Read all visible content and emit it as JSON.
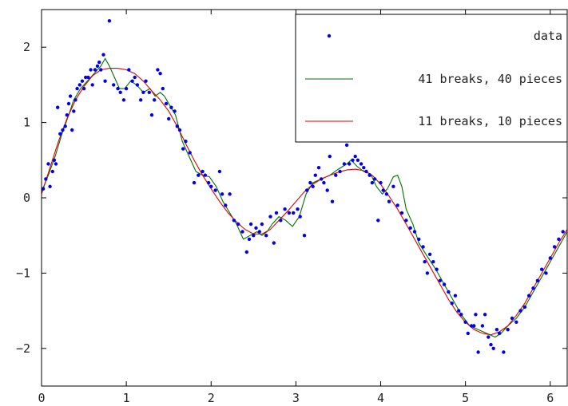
{
  "chart_data": {
    "type": "scatter",
    "title": "",
    "xlabel": "",
    "ylabel": "",
    "xlim": [
      0,
      6.2
    ],
    "ylim": [
      -2.5,
      2.5
    ],
    "xticks": [
      0,
      1,
      2,
      3,
      4,
      5,
      6
    ],
    "xtick_labels": [
      "0",
      "1",
      "2",
      "3",
      "4",
      "5",
      "6"
    ],
    "yticks": [
      2,
      1,
      0,
      -1,
      -2
    ],
    "ytick_labels": [
      "2",
      "1",
      "0",
      "−1",
      "−2"
    ],
    "grid": false,
    "legend_position": "top-right",
    "colors": {
      "data": "#0000ee",
      "fit41": "#007000",
      "fit11": "#e00000"
    },
    "series": [
      {
        "name": "data",
        "kind": "points",
        "points": [
          [
            0.02,
            0.12
          ],
          [
            0.05,
            0.25
          ],
          [
            0.08,
            0.45
          ],
          [
            0.1,
            0.15
          ],
          [
            0.13,
            0.35
          ],
          [
            0.15,
            0.5
          ],
          [
            0.17,
            0.45
          ],
          [
            0.19,
            1.2
          ],
          [
            0.22,
            0.85
          ],
          [
            0.25,
            0.9
          ],
          [
            0.28,
            0.95
          ],
          [
            0.3,
            1.1
          ],
          [
            0.32,
            1.25
          ],
          [
            0.34,
            1.35
          ],
          [
            0.36,
            0.9
          ],
          [
            0.38,
            1.15
          ],
          [
            0.4,
            1.3
          ],
          [
            0.42,
            1.45
          ],
          [
            0.45,
            1.5
          ],
          [
            0.48,
            1.55
          ],
          [
            0.5,
            1.45
          ],
          [
            0.52,
            1.6
          ],
          [
            0.55,
            1.6
          ],
          [
            0.58,
            1.7
          ],
          [
            0.6,
            1.5
          ],
          [
            0.63,
            1.7
          ],
          [
            0.66,
            1.75
          ],
          [
            0.68,
            1.8
          ],
          [
            0.7,
            1.7
          ],
          [
            0.73,
            1.9
          ],
          [
            0.75,
            1.55
          ],
          [
            0.8,
            2.35
          ],
          [
            0.85,
            1.5
          ],
          [
            0.9,
            1.45
          ],
          [
            0.93,
            1.4
          ],
          [
            0.97,
            1.3
          ],
          [
            1.0,
            1.45
          ],
          [
            1.03,
            1.7
          ],
          [
            1.07,
            1.55
          ],
          [
            1.1,
            1.6
          ],
          [
            1.13,
            1.5
          ],
          [
            1.17,
            1.3
          ],
          [
            1.2,
            1.4
          ],
          [
            1.23,
            1.55
          ],
          [
            1.27,
            1.4
          ],
          [
            1.3,
            1.1
          ],
          [
            1.33,
            1.3
          ],
          [
            1.37,
            1.7
          ],
          [
            1.4,
            1.65
          ],
          [
            1.43,
            1.45
          ],
          [
            1.47,
            1.25
          ],
          [
            1.5,
            1.05
          ],
          [
            1.53,
            1.2
          ],
          [
            1.57,
            1.15
          ],
          [
            1.6,
            0.95
          ],
          [
            1.63,
            0.9
          ],
          [
            1.67,
            0.65
          ],
          [
            1.7,
            0.75
          ],
          [
            1.75,
            0.6
          ],
          [
            1.8,
            0.2
          ],
          [
            1.85,
            0.3
          ],
          [
            1.9,
            0.35
          ],
          [
            1.93,
            0.3
          ],
          [
            1.97,
            0.2
          ],
          [
            2.0,
            0.15
          ],
          [
            2.05,
            0.1
          ],
          [
            2.1,
            0.35
          ],
          [
            2.13,
            0.05
          ],
          [
            2.17,
            -0.1
          ],
          [
            2.22,
            0.05
          ],
          [
            2.27,
            -0.3
          ],
          [
            2.32,
            -0.35
          ],
          [
            2.37,
            -0.45
          ],
          [
            2.42,
            -0.72
          ],
          [
            2.45,
            -0.55
          ],
          [
            2.47,
            -0.35
          ],
          [
            2.5,
            -0.5
          ],
          [
            2.53,
            -0.4
          ],
          [
            2.57,
            -0.45
          ],
          [
            2.6,
            -0.35
          ],
          [
            2.65,
            -0.5
          ],
          [
            2.7,
            -0.25
          ],
          [
            2.74,
            -0.6
          ],
          [
            2.77,
            -0.2
          ],
          [
            2.82,
            -0.3
          ],
          [
            2.87,
            -0.15
          ],
          [
            2.92,
            -0.2
          ],
          [
            2.97,
            -0.2
          ],
          [
            3.02,
            -0.15
          ],
          [
            3.05,
            -0.25
          ],
          [
            3.1,
            -0.5
          ],
          [
            3.13,
            0.1
          ],
          [
            3.17,
            0.2
          ],
          [
            3.2,
            0.15
          ],
          [
            3.23,
            0.3
          ],
          [
            3.27,
            0.4
          ],
          [
            3.3,
            0.25
          ],
          [
            3.33,
            0.2
          ],
          [
            3.37,
            0.1
          ],
          [
            3.4,
            0.55
          ],
          [
            3.43,
            -0.05
          ],
          [
            3.47,
            0.3
          ],
          [
            3.52,
            0.35
          ],
          [
            3.57,
            0.45
          ],
          [
            3.6,
            0.7
          ],
          [
            3.63,
            0.45
          ],
          [
            3.67,
            0.5
          ],
          [
            3.7,
            0.55
          ],
          [
            3.73,
            0.5
          ],
          [
            3.77,
            0.45
          ],
          [
            3.8,
            0.4
          ],
          [
            3.83,
            0.35
          ],
          [
            3.87,
            0.3
          ],
          [
            3.9,
            0.2
          ],
          [
            3.93,
            0.25
          ],
          [
            3.97,
            -0.3
          ],
          [
            4.0,
            0.2
          ],
          [
            4.03,
            0.1
          ],
          [
            4.07,
            0.05
          ],
          [
            4.1,
            -0.05
          ],
          [
            4.15,
            0.15
          ],
          [
            4.2,
            -0.1
          ],
          [
            4.25,
            -0.2
          ],
          [
            4.3,
            -0.3
          ],
          [
            4.35,
            -0.4
          ],
          [
            4.4,
            -0.45
          ],
          [
            4.45,
            -0.55
          ],
          [
            4.5,
            -0.65
          ],
          [
            4.52,
            -0.85
          ],
          [
            4.55,
            -1.0
          ],
          [
            4.58,
            -0.75
          ],
          [
            4.62,
            -0.85
          ],
          [
            4.66,
            -0.95
          ],
          [
            4.7,
            -1.1
          ],
          [
            4.75,
            -1.15
          ],
          [
            4.8,
            -1.25
          ],
          [
            4.84,
            -1.4
          ],
          [
            4.88,
            -1.3
          ],
          [
            4.92,
            -1.5
          ],
          [
            4.95,
            -1.55
          ],
          [
            5.0,
            -1.65
          ],
          [
            5.03,
            -1.8
          ],
          [
            5.07,
            -1.7
          ],
          [
            5.1,
            -1.7
          ],
          [
            5.12,
            -1.55
          ],
          [
            5.15,
            -2.05
          ],
          [
            5.2,
            -1.7
          ],
          [
            5.23,
            -1.55
          ],
          [
            5.27,
            -1.85
          ],
          [
            5.3,
            -1.95
          ],
          [
            5.33,
            -2.0
          ],
          [
            5.37,
            -1.75
          ],
          [
            5.4,
            -1.8
          ],
          [
            5.45,
            -2.05
          ],
          [
            5.5,
            -1.75
          ],
          [
            5.55,
            -1.6
          ],
          [
            5.6,
            -1.65
          ],
          [
            5.65,
            -1.5
          ],
          [
            5.7,
            -1.45
          ],
          [
            5.75,
            -1.3
          ],
          [
            5.8,
            -1.2
          ],
          [
            5.85,
            -1.1
          ],
          [
            5.9,
            -0.95
          ],
          [
            5.95,
            -1.0
          ],
          [
            6.0,
            -0.8
          ],
          [
            6.05,
            -0.65
          ],
          [
            6.1,
            -0.55
          ],
          [
            6.15,
            -0.45
          ]
        ]
      },
      {
        "name": "41 breaks, 40 pieces",
        "kind": "line",
        "points": [
          [
            0.0,
            0.08
          ],
          [
            0.08,
            0.3
          ],
          [
            0.16,
            0.55
          ],
          [
            0.24,
            0.85
          ],
          [
            0.32,
            1.1
          ],
          [
            0.38,
            1.3
          ],
          [
            0.46,
            1.45
          ],
          [
            0.54,
            1.55
          ],
          [
            0.62,
            1.65
          ],
          [
            0.7,
            1.75
          ],
          [
            0.75,
            1.85
          ],
          [
            0.8,
            1.75
          ],
          [
            0.86,
            1.6
          ],
          [
            0.92,
            1.45
          ],
          [
            0.98,
            1.45
          ],
          [
            1.05,
            1.55
          ],
          [
            1.12,
            1.5
          ],
          [
            1.2,
            1.4
          ],
          [
            1.28,
            1.45
          ],
          [
            1.34,
            1.35
          ],
          [
            1.4,
            1.4
          ],
          [
            1.45,
            1.35
          ],
          [
            1.5,
            1.25
          ],
          [
            1.58,
            1.1
          ],
          [
            1.66,
            0.75
          ],
          [
            1.74,
            0.55
          ],
          [
            1.82,
            0.35
          ],
          [
            1.9,
            0.3
          ],
          [
            1.98,
            0.28
          ],
          [
            2.06,
            0.15
          ],
          [
            2.14,
            -0.05
          ],
          [
            2.22,
            -0.2
          ],
          [
            2.3,
            -0.35
          ],
          [
            2.38,
            -0.55
          ],
          [
            2.46,
            -0.5
          ],
          [
            2.54,
            -0.45
          ],
          [
            2.6,
            -0.5
          ],
          [
            2.66,
            -0.45
          ],
          [
            2.72,
            -0.35
          ],
          [
            2.8,
            -0.25
          ],
          [
            2.88,
            -0.3
          ],
          [
            2.96,
            -0.38
          ],
          [
            3.04,
            -0.25
          ],
          [
            3.12,
            0.05
          ],
          [
            3.2,
            0.2
          ],
          [
            3.3,
            0.25
          ],
          [
            3.4,
            0.3
          ],
          [
            3.5,
            0.38
          ],
          [
            3.6,
            0.45
          ],
          [
            3.65,
            0.5
          ],
          [
            3.72,
            0.42
          ],
          [
            3.8,
            0.35
          ],
          [
            3.88,
            0.32
          ],
          [
            3.95,
            0.15
          ],
          [
            4.02,
            0.05
          ],
          [
            4.08,
            0.12
          ],
          [
            4.15,
            0.28
          ],
          [
            4.2,
            0.3
          ],
          [
            4.25,
            0.15
          ],
          [
            4.3,
            -0.15
          ],
          [
            4.38,
            -0.35
          ],
          [
            4.45,
            -0.6
          ],
          [
            4.55,
            -0.78
          ],
          [
            4.65,
            -0.95
          ],
          [
            4.75,
            -1.15
          ],
          [
            4.85,
            -1.35
          ],
          [
            4.95,
            -1.55
          ],
          [
            5.05,
            -1.7
          ],
          [
            5.15,
            -1.75
          ],
          [
            5.25,
            -1.8
          ],
          [
            5.35,
            -1.85
          ],
          [
            5.42,
            -1.8
          ],
          [
            5.5,
            -1.7
          ],
          [
            5.6,
            -1.6
          ],
          [
            5.7,
            -1.45
          ],
          [
            5.8,
            -1.25
          ],
          [
            5.9,
            -1.05
          ],
          [
            6.0,
            -0.85
          ],
          [
            6.1,
            -0.65
          ],
          [
            6.2,
            -0.45
          ]
        ]
      },
      {
        "name": "11 breaks, 10 pieces",
        "kind": "line",
        "points": [
          [
            0.0,
            0.05
          ],
          [
            0.1,
            0.4
          ],
          [
            0.2,
            0.75
          ],
          [
            0.3,
            1.05
          ],
          [
            0.4,
            1.3
          ],
          [
            0.5,
            1.48
          ],
          [
            0.6,
            1.62
          ],
          [
            0.7,
            1.7
          ],
          [
            0.8,
            1.72
          ],
          [
            0.9,
            1.72
          ],
          [
            1.0,
            1.7
          ],
          [
            1.1,
            1.65
          ],
          [
            1.2,
            1.55
          ],
          [
            1.3,
            1.42
          ],
          [
            1.4,
            1.3
          ],
          [
            1.5,
            1.15
          ],
          [
            1.6,
            0.95
          ],
          [
            1.7,
            0.72
          ],
          [
            1.8,
            0.5
          ],
          [
            1.9,
            0.3
          ],
          [
            2.0,
            0.12
          ],
          [
            2.1,
            -0.05
          ],
          [
            2.2,
            -0.2
          ],
          [
            2.3,
            -0.32
          ],
          [
            2.4,
            -0.42
          ],
          [
            2.5,
            -0.48
          ],
          [
            2.6,
            -0.48
          ],
          [
            2.7,
            -0.42
          ],
          [
            2.8,
            -0.3
          ],
          [
            2.9,
            -0.18
          ],
          [
            3.0,
            -0.05
          ],
          [
            3.1,
            0.08
          ],
          [
            3.2,
            0.18
          ],
          [
            3.3,
            0.25
          ],
          [
            3.4,
            0.3
          ],
          [
            3.5,
            0.34
          ],
          [
            3.6,
            0.37
          ],
          [
            3.7,
            0.38
          ],
          [
            3.8,
            0.36
          ],
          [
            3.9,
            0.3
          ],
          [
            4.0,
            0.18
          ],
          [
            4.1,
            0.02
          ],
          [
            4.2,
            -0.15
          ],
          [
            4.3,
            -0.35
          ],
          [
            4.4,
            -0.55
          ],
          [
            4.5,
            -0.75
          ],
          [
            4.6,
            -0.95
          ],
          [
            4.7,
            -1.15
          ],
          [
            4.8,
            -1.35
          ],
          [
            4.9,
            -1.52
          ],
          [
            5.0,
            -1.65
          ],
          [
            5.1,
            -1.75
          ],
          [
            5.2,
            -1.8
          ],
          [
            5.3,
            -1.82
          ],
          [
            5.4,
            -1.78
          ],
          [
            5.5,
            -1.7
          ],
          [
            5.6,
            -1.56
          ],
          [
            5.7,
            -1.4
          ],
          [
            5.8,
            -1.2
          ],
          [
            5.9,
            -1.0
          ],
          [
            6.0,
            -0.8
          ],
          [
            6.1,
            -0.6
          ],
          [
            6.2,
            -0.42
          ]
        ]
      }
    ]
  },
  "legend": {
    "items": [
      {
        "label": "data",
        "marker": "point",
        "color": "#0000ee"
      },
      {
        "label": "41 breaks, 40 pieces",
        "marker": "line",
        "color": "#007000"
      },
      {
        "label": "11 breaks, 10 pieces",
        "marker": "line",
        "color": "#e00000"
      }
    ]
  }
}
